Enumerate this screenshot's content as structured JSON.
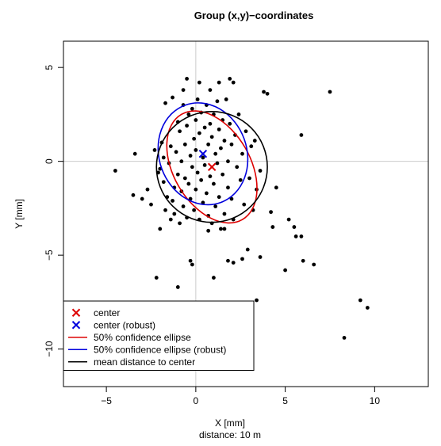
{
  "chart_data": {
    "type": "scatter",
    "title": "Group (x,y)−coordinates",
    "xlabel": "X [mm]",
    "sublabel": "distance: 10 m",
    "ylabel": "Y [mm]",
    "xlim": [
      -7.4,
      13.0
    ],
    "ylim": [
      -12.0,
      6.4
    ],
    "x_ticks": [
      -5,
      0,
      5,
      10
    ],
    "x_tick_labels": [
      "−5",
      "0",
      "5",
      "10"
    ],
    "y_ticks": [
      -10,
      -5,
      0,
      5
    ],
    "y_tick_labels": [
      "−10",
      "−5",
      "0",
      "5"
    ],
    "reference_lines": {
      "x": 0,
      "y": 0,
      "color": "#cccccc"
    },
    "colors": {
      "center": "#dd0000",
      "robust": "#0000dd",
      "mean": "#000000",
      "points": "#000000"
    },
    "points": [
      [
        -4.5,
        -0.5
      ],
      [
        -3.5,
        -1.8
      ],
      [
        -3.4,
        0.4
      ],
      [
        -3.0,
        -2.0
      ],
      [
        -2.7,
        -1.5
      ],
      [
        -2.5,
        -2.3
      ],
      [
        -2.3,
        0.6
      ],
      [
        -2.1,
        -0.6
      ],
      [
        -2.0,
        -3.6
      ],
      [
        -2.0,
        -0.4
      ],
      [
        -1.9,
        1.0
      ],
      [
        -1.8,
        0.2
      ],
      [
        -1.8,
        -1.1
      ],
      [
        -1.7,
        -2.6
      ],
      [
        -1.6,
        -1.9
      ],
      [
        -1.5,
        -0.1
      ],
      [
        -1.4,
        -3.1
      ],
      [
        -1.4,
        0.8
      ],
      [
        -1.3,
        -2.1
      ],
      [
        -1.3,
        3.4
      ],
      [
        -1.2,
        -1.4
      ],
      [
        -1.2,
        -2.8
      ],
      [
        -1.1,
        0.5
      ],
      [
        -1.0,
        -0.7
      ],
      [
        -1.0,
        2.1
      ],
      [
        -0.9,
        -3.3
      ],
      [
        -0.9,
        1.6
      ],
      [
        -0.8,
        -1.6
      ],
      [
        -0.8,
        0.0
      ],
      [
        -0.7,
        3.0
      ],
      [
        -0.7,
        -2.4
      ],
      [
        -0.6,
        0.9
      ],
      [
        -0.6,
        -0.9
      ],
      [
        -0.5,
        1.9
      ],
      [
        -0.5,
        -3.0
      ],
      [
        -0.4,
        2.5
      ],
      [
        -0.4,
        -1.2
      ],
      [
        -0.3,
        0.3
      ],
      [
        -0.3,
        -2.0
      ],
      [
        -0.2,
        2.8
      ],
      [
        -0.2,
        -0.3
      ],
      [
        -0.1,
        1.2
      ],
      [
        -0.1,
        -2.6
      ],
      [
        0.0,
        2.2
      ],
      [
        0.0,
        -1.5
      ],
      [
        0.0,
        0.6
      ],
      [
        0.1,
        3.3
      ],
      [
        0.1,
        -0.6
      ],
      [
        0.2,
        1.5
      ],
      [
        0.2,
        -3.1
      ],
      [
        0.3,
        2.6
      ],
      [
        0.3,
        -1.0
      ],
      [
        0.4,
        0.2
      ],
      [
        0.4,
        -2.2
      ],
      [
        0.5,
        1.8
      ],
      [
        0.5,
        -0.2
      ],
      [
        0.6,
        3.0
      ],
      [
        0.6,
        -1.7
      ],
      [
        0.7,
        0.9
      ],
      [
        0.7,
        -2.9
      ],
      [
        0.8,
        2.0
      ],
      [
        0.8,
        -0.8
      ],
      [
        0.9,
        1.3
      ],
      [
        0.9,
        -3.3
      ],
      [
        1.0,
        2.5
      ],
      [
        1.0,
        -1.2
      ],
      [
        1.1,
        0.4
      ],
      [
        1.1,
        -2.4
      ],
      [
        1.2,
        3.2
      ],
      [
        1.2,
        -0.1
      ],
      [
        1.3,
        1.7
      ],
      [
        1.3,
        -1.9
      ],
      [
        1.4,
        0.7
      ],
      [
        1.4,
        -3.6
      ],
      [
        1.5,
        2.2
      ],
      [
        1.5,
        -0.7
      ],
      [
        1.6,
        1.1
      ],
      [
        1.6,
        -2.8
      ],
      [
        1.7,
        3.3
      ],
      [
        1.8,
        -1.4
      ],
      [
        1.8,
        0.0
      ],
      [
        1.9,
        2.0
      ],
      [
        2.0,
        -2.0
      ],
      [
        2.0,
        0.9
      ],
      [
        2.1,
        -3.1
      ],
      [
        2.2,
        1.4
      ],
      [
        2.3,
        -0.3
      ],
      [
        2.4,
        2.5
      ],
      [
        2.5,
        -1.0
      ],
      [
        2.6,
        0.4
      ],
      [
        2.7,
        -2.3
      ],
      [
        2.8,
        1.6
      ],
      [
        3.0,
        -0.9
      ],
      [
        3.1,
        0.8
      ],
      [
        3.2,
        -2.6
      ],
      [
        3.3,
        1.1
      ],
      [
        3.4,
        -1.5
      ],
      [
        3.6,
        -0.5
      ],
      [
        2.9,
        -4.7
      ],
      [
        2.6,
        -5.2
      ],
      [
        3.4,
        -7.4
      ],
      [
        3.6,
        -5.1
      ],
      [
        3.8,
        3.7
      ],
      [
        4.0,
        3.6
      ],
      [
        4.2,
        -2.7
      ],
      [
        4.3,
        -3.5
      ],
      [
        4.5,
        -1.4
      ],
      [
        5.0,
        -5.8
      ],
      [
        5.2,
        -3.1
      ],
      [
        5.5,
        -3.5
      ],
      [
        5.6,
        -4.0
      ],
      [
        5.9,
        -4.0
      ],
      [
        5.9,
        1.4
      ],
      [
        6.0,
        -5.3
      ],
      [
        6.6,
        -5.5
      ],
      [
        7.5,
        3.7
      ],
      [
        8.3,
        -9.4
      ],
      [
        9.2,
        -7.4
      ],
      [
        9.6,
        -7.8
      ],
      [
        -0.3,
        -5.3
      ],
      [
        -0.2,
        -5.5
      ],
      [
        -1.0,
        -6.7
      ],
      [
        -2.2,
        -6.2
      ],
      [
        1.0,
        -6.2
      ],
      [
        1.8,
        -5.3
      ],
      [
        2.1,
        -5.4
      ],
      [
        -0.5,
        4.4
      ],
      [
        0.2,
        4.2
      ],
      [
        1.3,
        4.2
      ],
      [
        1.9,
        4.4
      ],
      [
        2.1,
        4.2
      ],
      [
        0.8,
        3.8
      ],
      [
        -0.7,
        3.8
      ],
      [
        -1.7,
        3.1
      ],
      [
        1.6,
        -3.6
      ],
      [
        0.7,
        -3.7
      ]
    ],
    "center": {
      "x": 0.9,
      "y": -0.3
    },
    "center_robust": {
      "x": 0.4,
      "y": 0.4
    },
    "ellipse_50": {
      "cx": 0.9,
      "cy": -0.3,
      "rx": 3.4,
      "ry": 2.15,
      "angle_deg": -60
    },
    "ellipse_50_robust": {
      "cx": 0.4,
      "cy": 0.4,
      "rx": 2.9,
      "ry": 2.45,
      "angle_deg": -70
    },
    "mean_distance_circle": {
      "cx": 0.9,
      "cy": -0.3,
      "r": 3.1
    },
    "legend": {
      "placement": "bottom-left",
      "entries": [
        {
          "label": "center",
          "marker": "x",
          "color": "#dd0000"
        },
        {
          "label": "center (robust)",
          "marker": "x",
          "color": "#0000dd"
        },
        {
          "label": "50% confidence ellipse",
          "marker": "line",
          "color": "#dd0000"
        },
        {
          "label": "50% confidence ellipse (robust)",
          "marker": "line",
          "color": "#0000dd"
        },
        {
          "label": "mean distance to center",
          "marker": "line",
          "color": "#000000"
        }
      ]
    }
  }
}
